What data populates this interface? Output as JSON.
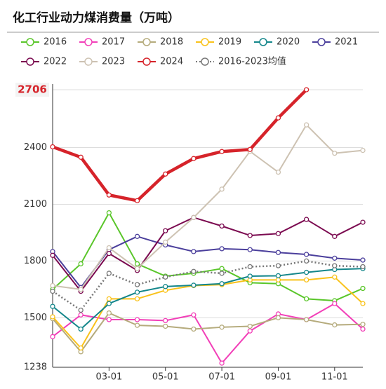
{
  "chart_data": {
    "type": "line",
    "title": "化工行业动力煤消费量（万吨）",
    "categories": [
      null,
      null,
      "03-01",
      null,
      "05-01",
      null,
      "07-01",
      null,
      "09-01",
      null,
      "11-01",
      null
    ],
    "ylim": [
      1238,
      2706
    ],
    "yticks": [
      1238,
      1500,
      1800,
      2100,
      2400,
      2706
    ],
    "grid": true,
    "series": [
      {
        "name": "2016",
        "color": "#5ac62a",
        "values": [
          1650,
          1785,
          2055,
          1785,
          1720,
          1735,
          1760,
          1685,
          1680,
          1600,
          1590,
          1655
        ]
      },
      {
        "name": "2017",
        "color": "#f23fb8",
        "values": [
          1400,
          1515,
          1490,
          1490,
          1485,
          1515,
          1260,
          1430,
          1520,
          1490,
          1575,
          1440
        ]
      },
      {
        "name": "2018",
        "color": "#b5ab7c",
        "values": [
          1495,
          1320,
          1525,
          1460,
          1455,
          1440,
          1450,
          1455,
          1500,
          1490,
          1462,
          1465
        ]
      },
      {
        "name": "2019",
        "color": "#f9c21a",
        "values": [
          1505,
          1340,
          1600,
          1600,
          1645,
          1670,
          1675,
          1700,
          1700,
          1700,
          1715,
          1575
        ]
      },
      {
        "name": "2020",
        "color": "#13868a",
        "values": [
          1560,
          1440,
          1575,
          1635,
          1665,
          1672,
          1680,
          1720,
          1722,
          1740,
          1755,
          1760
        ]
      },
      {
        "name": "2021",
        "color": "#4b3f9c",
        "values": [
          1850,
          1660,
          1860,
          1930,
          1885,
          1850,
          1865,
          1860,
          1845,
          1835,
          1815,
          1805
        ]
      },
      {
        "name": "2022",
        "color": "#7b0a50",
        "values": [
          1830,
          1640,
          1840,
          1750,
          1960,
          2030,
          1985,
          1935,
          1945,
          2020,
          1930,
          2005
        ]
      },
      {
        "name": "2023",
        "color": "#cdc2b2",
        "values": [
          1670,
          1650,
          1870,
          1760,
          1900,
          2030,
          2180,
          2380,
          2270,
          2520,
          2370,
          2385
        ]
      },
      {
        "name": "2024",
        "color": "#d6232a",
        "values": [
          2404,
          2349,
          2149,
          2119,
          2260,
          2342,
          2379,
          2390,
          2557,
          2706,
          null,
          null
        ]
      },
      {
        "name": "2016-2023均值",
        "color": "#777777",
        "dashed": true,
        "values": [
          1640,
          1540,
          1735,
          1675,
          1715,
          1745,
          1735,
          1770,
          1775,
          1800,
          1775,
          1770
        ]
      }
    ]
  }
}
